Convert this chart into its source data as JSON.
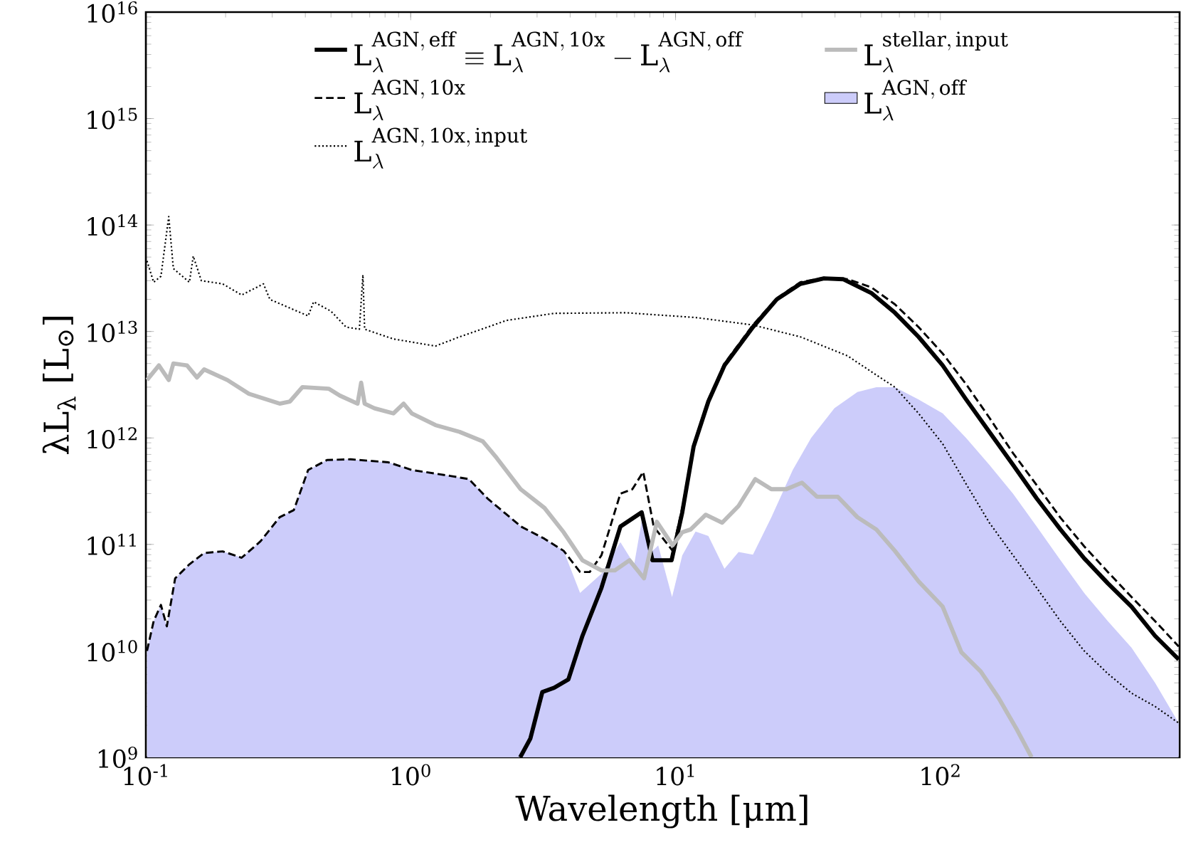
{
  "chart_data": {
    "type": "line",
    "xlabel": "Wavelength [μm]",
    "ylabel": "λL$_{λ}$ [L$_{⊙}$]",
    "log": "xy",
    "legend": "top",
    "grid": false,
    "xlim": [
      0.1,
      800
    ],
    "ylim": [
      1000000000.0,
      1e+16
    ],
    "xticks": [
      {
        "value": 0.1,
        "label": "10$^{-1}$"
      },
      {
        "value": 1,
        "label": "10$^{0}$"
      },
      {
        "value": 10,
        "label": "10$^{1}$"
      },
      {
        "value": 100,
        "label": "10$^{2}$"
      }
    ],
    "yticks": [
      {
        "value": 1000000000.0,
        "label": "10$^{9}$"
      },
      {
        "value": 10000000000.0,
        "label": "10$^{10}$"
      },
      {
        "value": 100000000000.0,
        "label": "10$^{11}$"
      },
      {
        "value": 1000000000000.0,
        "label": "10$^{12}$"
      },
      {
        "value": 10000000000000.0,
        "label": "10$^{13}$"
      },
      {
        "value": 100000000000000.0,
        "label": "10$^{14}$"
      },
      {
        "value": 1000000000000000.0,
        "label": "10$^{15}$"
      },
      {
        "value": 1e+16,
        "label": "10$^{16}$"
      }
    ],
    "series": [
      {
        "name": "\\mathrm{L}_\\lambda^{\\mathrm{AGN,\\,eff}} \\equiv \\mathrm{L}_\\lambda^{\\mathrm{AGN,\\,10x}} - \\mathrm{L}_\\lambda^{\\mathrm{AGN,\\,off}}",
        "line_style": "solid",
        "color": "#000000",
        "x": [
          2.59,
          2.83,
          3.14,
          3.48,
          3.94,
          4.45,
          5.25,
          6.19,
          7.45,
          8.18,
          9.66,
          10.6,
          11.7,
          13.3,
          15.3,
          19.6,
          24.1,
          29.6,
          36.3,
          42.9,
          54.8,
          67.3,
          82.7,
          102,
          125,
          153,
          188,
          231,
          284,
          349,
          429,
          527,
          647,
          794
        ],
        "values": [
          1000000000.0,
          1500000000.0,
          4100000000.0,
          4500000000.0,
          5400000000.0,
          13800000000.0,
          39000000000.0,
          147000000000.0,
          200000000000.0,
          71000000000.0,
          71000000000.0,
          200000000000.0,
          830000000000.0,
          2200000000000.0,
          4800000000000.0,
          11000000000000.0,
          20000000000000.0,
          28000000000000.0,
          31500000000000.0,
          31000000000000.0,
          23000000000000.0,
          15000000000000.0,
          8900000000000.0,
          4800000000000.0,
          2300000000000.0,
          1140000000000.0,
          560000000000.0,
          270000000000.0,
          138000000000.0,
          74000000000.0,
          43000000000.0,
          26000000000.0,
          13800000000.0,
          8300000000.0
        ]
      },
      {
        "name": "\\mathrm{L}_\\lambda^{\\mathrm{AGN,\\,10x}}",
        "line_style": "dashed",
        "color": "#000000",
        "x": [
          0.101,
          0.107,
          0.114,
          0.12,
          0.129,
          0.146,
          0.166,
          0.195,
          0.23,
          0.271,
          0.32,
          0.362,
          0.41,
          0.483,
          0.593,
          0.824,
          1.01,
          1.41,
          1.66,
          1.95,
          2.61,
          3.2,
          3.78,
          4.36,
          4.74,
          5.25,
          6.19,
          6.87,
          7.55,
          8.27,
          9.75,
          10.6,
          11.7,
          13.3,
          15.3,
          19.6,
          24.1,
          29.6,
          36.3,
          44.6,
          54.8,
          67.3,
          82.7,
          102,
          125,
          153,
          188,
          231,
          284,
          349,
          429,
          527,
          647,
          794
        ],
        "values": [
          10000000000.0,
          19000000000.0,
          27000000000.0,
          17000000000.0,
          48000000000.0,
          65000000000.0,
          83000000000.0,
          86000000000.0,
          75000000000.0,
          107000000000.0,
          180000000000.0,
          210000000000.0,
          500000000000.0,
          620000000000.0,
          630000000000.0,
          590000000000.0,
          500000000000.0,
          440000000000.0,
          410000000000.0,
          270000000000.0,
          147000000000.0,
          113000000000.0,
          87000000000.0,
          55000000000.0,
          55000000000.0,
          79000000000.0,
          300000000000.0,
          330000000000.0,
          480000000000.0,
          147000000000.0,
          87000000000.0,
          220000000000.0,
          870000000000.0,
          2300000000000.0,
          5000000000000.0,
          11500000000000.0,
          20500000000000.0,
          29000000000000.0,
          32000000000000.0,
          31000000000000.0,
          26000000000000.0,
          18000000000000.0,
          11000000000000.0,
          6200000000000.0,
          3200000000000.0,
          1550000000000.0,
          720000000000.0,
          360000000000.0,
          178000000000.0,
          96000000000.0,
          55000000000.0,
          32000000000.0,
          19000000000.0,
          11000000000.0
        ]
      },
      {
        "name": "\\mathrm{L}_\\lambda^{\\mathrm{AGN,\\,10x,\\,input}}",
        "line_style": "dotted",
        "color": "#000000",
        "x": [
          0.101,
          0.107,
          0.114,
          0.122,
          0.127,
          0.146,
          0.151,
          0.162,
          0.195,
          0.23,
          0.278,
          0.294,
          0.41,
          0.43,
          0.5,
          0.57,
          0.64,
          0.66,
          0.67,
          0.86,
          1.24,
          1.53,
          2.3,
          3.48,
          6.5,
          12.0,
          19.6,
          29.6,
          44.6,
          57.3,
          67.3,
          82.7,
          102,
          125,
          153,
          188,
          231,
          284,
          349,
          429,
          527,
          647,
          794
        ],
        "values": [
          46000000000000.0,
          29000000000000.0,
          33000000000000.0,
          120000000000000.0,
          39000000000000.0,
          29000000000000.0,
          51000000000000.0,
          30000000000000.0,
          28000000000000.0,
          22000000000000.0,
          28000000000000.0,
          20000000000000.0,
          14000000000000.0,
          19000000000000.0,
          15500000000000.0,
          11000000000000.0,
          10500000000000.0,
          34000000000000.0,
          10500000000000.0,
          8500000000000.0,
          7300000000000.0,
          8900000000000.0,
          12700000000000.0,
          14800000000000.0,
          15000000000000.0,
          13500000000000.0,
          11500000000000.0,
          8900000000000.0,
          5900000000000.0,
          3900000000000.0,
          3000000000000.0,
          1700000000000.0,
          880000000000.0,
          370000000000.0,
          160000000000.0,
          79000000000.0,
          39000000000.0,
          19000000000.0,
          10000000000.0,
          6100000000.0,
          4000000000.0,
          3000000000.0,
          2100000000.0
        ]
      },
      {
        "name": "\\mathrm{L}_\\lambda^{\\mathrm{stellar,\\,input}}",
        "line_style": "solid",
        "color": "#bbbbbb",
        "x": [
          0.101,
          0.112,
          0.122,
          0.127,
          0.143,
          0.156,
          0.166,
          0.203,
          0.245,
          0.32,
          0.35,
          0.39,
          0.49,
          0.54,
          0.63,
          0.65,
          0.67,
          0.73,
          0.86,
          0.94,
          1.01,
          1.24,
          1.53,
          1.87,
          2.11,
          2.6,
          3.2,
          3.78,
          4.45,
          5.25,
          5.9,
          6.7,
          7.6,
          8.5,
          9.75,
          10.6,
          11.4,
          13.0,
          15.0,
          17.3,
          20,
          23.0,
          26.2,
          30.0,
          34.2,
          41,
          48.6,
          57.3,
          67.3,
          82.7,
          102,
          120,
          142,
          166,
          195,
          221
        ],
        "values": [
          3500000000000.0,
          4800000000000.0,
          3500000000000.0,
          5000000000000.0,
          4800000000000.0,
          3700000000000.0,
          4400000000000.0,
          3500000000000.0,
          2600000000000.0,
          2100000000000.0,
          2200000000000.0,
          3000000000000.0,
          2900000000000.0,
          2500000000000.0,
          2100000000000.0,
          3300000000000.0,
          2100000000000.0,
          1900000000000.0,
          1700000000000.0,
          2100000000000.0,
          1700000000000.0,
          1320000000000.0,
          1140000000000.0,
          930000000000.0,
          650000000000.0,
          330000000000.0,
          220000000000.0,
          130000000000.0,
          71000000000.0,
          57000000000.0,
          57000000000.0,
          71000000000.0,
          48000000000.0,
          163000000000.0,
          98000000000.0,
          130000000000.0,
          138000000000.0,
          190000000000.0,
          160000000000.0,
          230000000000.0,
          410000000000.0,
          330000000000.0,
          330000000000.0,
          380000000000.0,
          280000000000.0,
          280000000000.0,
          180000000000.0,
          138000000000.0,
          87000000000.0,
          45000000000.0,
          26000000000.0,
          9700000000.0,
          6400000000.0,
          3600000000.0,
          1800000000.0,
          1000000000.0
        ]
      },
      {
        "name": "\\mathrm{L}_\\lambda^{\\mathrm{AGN,\\,off}}",
        "type": "area",
        "color": "#ccccfa",
        "x": [
          0.101,
          0.107,
          0.114,
          0.12,
          0.129,
          0.146,
          0.166,
          0.195,
          0.23,
          0.271,
          0.32,
          0.362,
          0.41,
          0.483,
          0.593,
          0.824,
          1.01,
          1.41,
          1.66,
          1.95,
          2.61,
          3.2,
          3.78,
          4.36,
          5.25,
          6.19,
          6.98,
          7.55,
          8.2,
          8.6,
          9.7,
          10.6,
          11.9,
          13.3,
          15.3,
          17.3,
          19.6,
          23.0,
          27.7,
          32.5,
          39.8,
          48.6,
          57.3,
          67.3,
          82.7,
          102,
          125,
          153,
          188,
          231,
          284,
          349,
          429,
          527,
          647,
          794
        ],
        "values": [
          10000000000.0,
          19000000000.0,
          27000000000.0,
          17000000000.0,
          48000000000.0,
          65000000000.0,
          83000000000.0,
          86000000000.0,
          75000000000.0,
          107000000000.0,
          180000000000.0,
          210000000000.0,
          500000000000.0,
          620000000000.0,
          630000000000.0,
          590000000000.0,
          500000000000.0,
          440000000000.0,
          410000000000.0,
          270000000000.0,
          147000000000.0,
          113000000000.0,
          87000000000.0,
          35000000000.0,
          53000000000.0,
          105000000000.0,
          65000000000.0,
          200000000000.0,
          87000000000.0,
          98000000000.0,
          32000000000.0,
          79000000000.0,
          132000000000.0,
          120000000000.0,
          59000000000.0,
          85000000000.0,
          80000000000.0,
          180000000000.0,
          500000000000.0,
          1000000000000.0,
          1900000000000.0,
          2700000000000.0,
          3000000000000.0,
          3000000000000.0,
          2300000000000.0,
          1700000000000.0,
          1000000000000.0,
          560000000000.0,
          300000000000.0,
          147000000000.0,
          71000000000.0,
          35000000000.0,
          19000000000.0,
          10700000000.0,
          5000000000.0,
          2100000000.0
        ]
      }
    ]
  }
}
